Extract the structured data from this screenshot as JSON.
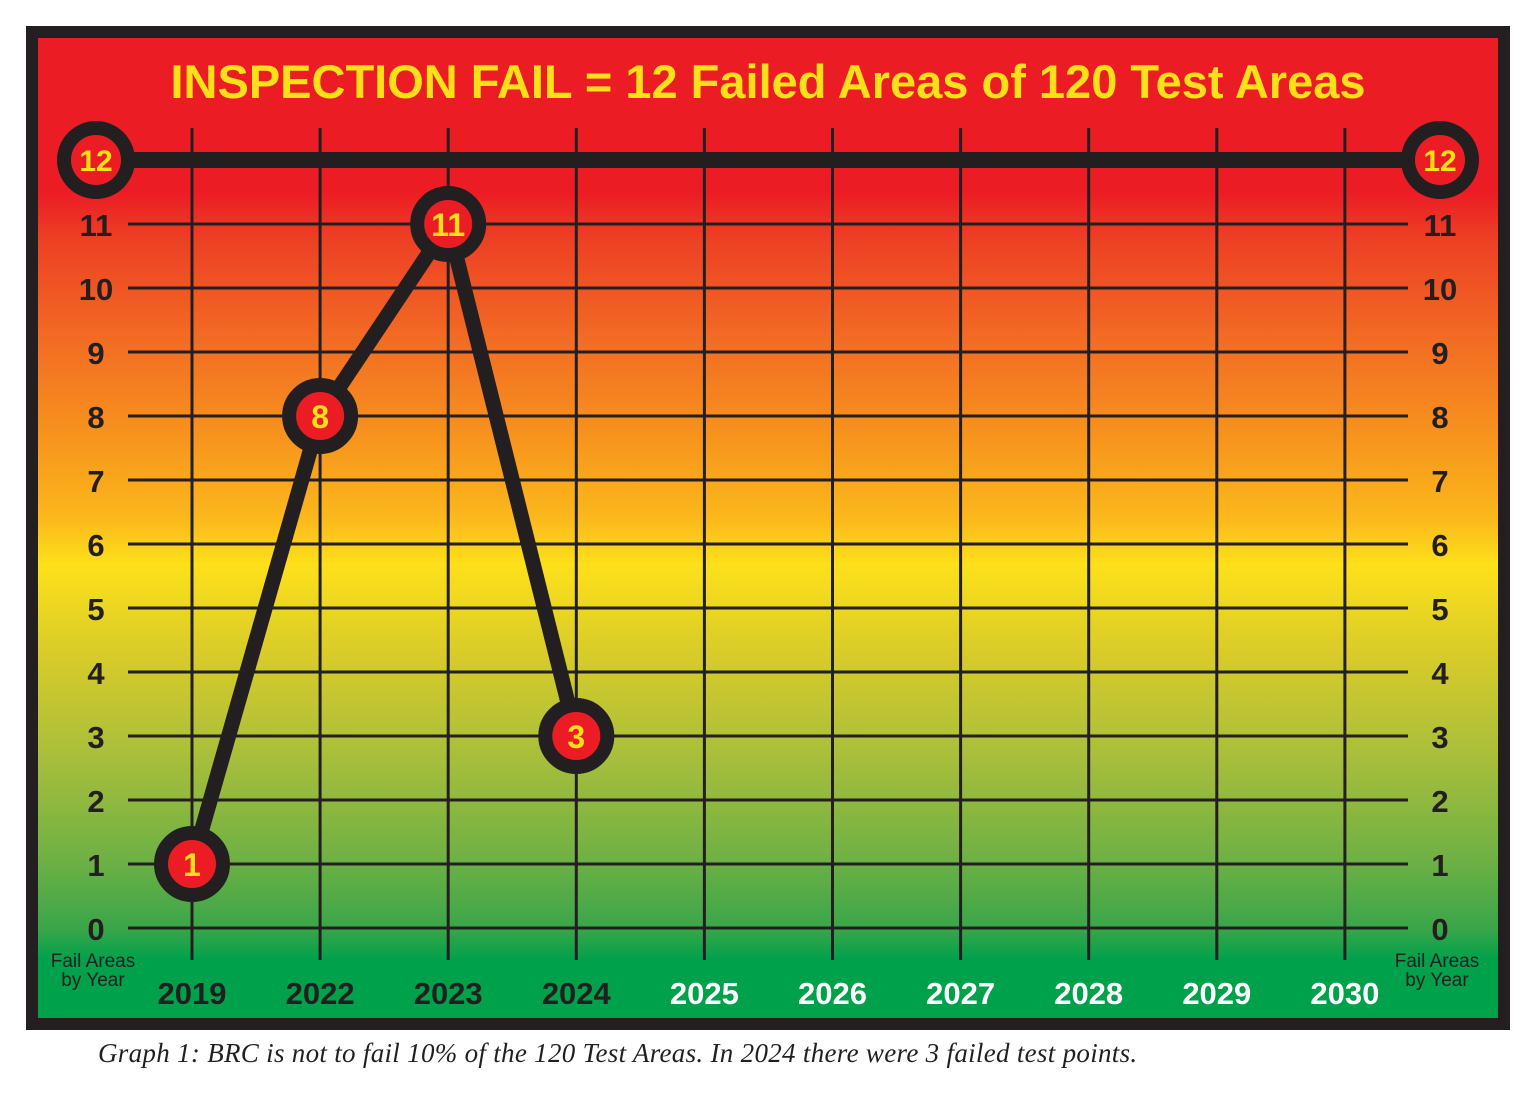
{
  "chart_data": {
    "type": "line",
    "title": "INSPECTION FAIL = 12 Failed Areas of 120 Test Areas",
    "ylabel": "Fail Areas by Year",
    "ylabel_right": "Fail Areas by Year",
    "categories": [
      "2019",
      "2022",
      "2023",
      "2024",
      "2025",
      "2026",
      "2027",
      "2028",
      "2029",
      "2030"
    ],
    "series": [
      {
        "name": "Failed areas",
        "values": [
          1,
          8,
          11,
          3,
          null,
          null,
          null,
          null,
          null,
          null
        ]
      }
    ],
    "threshold": {
      "value": 12,
      "label": "12"
    },
    "yticks": [
      0,
      1,
      2,
      3,
      4,
      5,
      6,
      7,
      8,
      9,
      10,
      11
    ],
    "ylim": [
      0,
      12
    ],
    "grid": true,
    "colors": {
      "frame": "#231f20",
      "title": "#fde01a",
      "marker_fill": "#ec1c24",
      "marker_text": "#fde01a",
      "past_label": "#231f20",
      "future_label": "#ffffff"
    }
  },
  "caption": "Graph 1: BRC is not to fail 10% of the 120 Test Areas.  In 2024 there were 3 failed test points."
}
